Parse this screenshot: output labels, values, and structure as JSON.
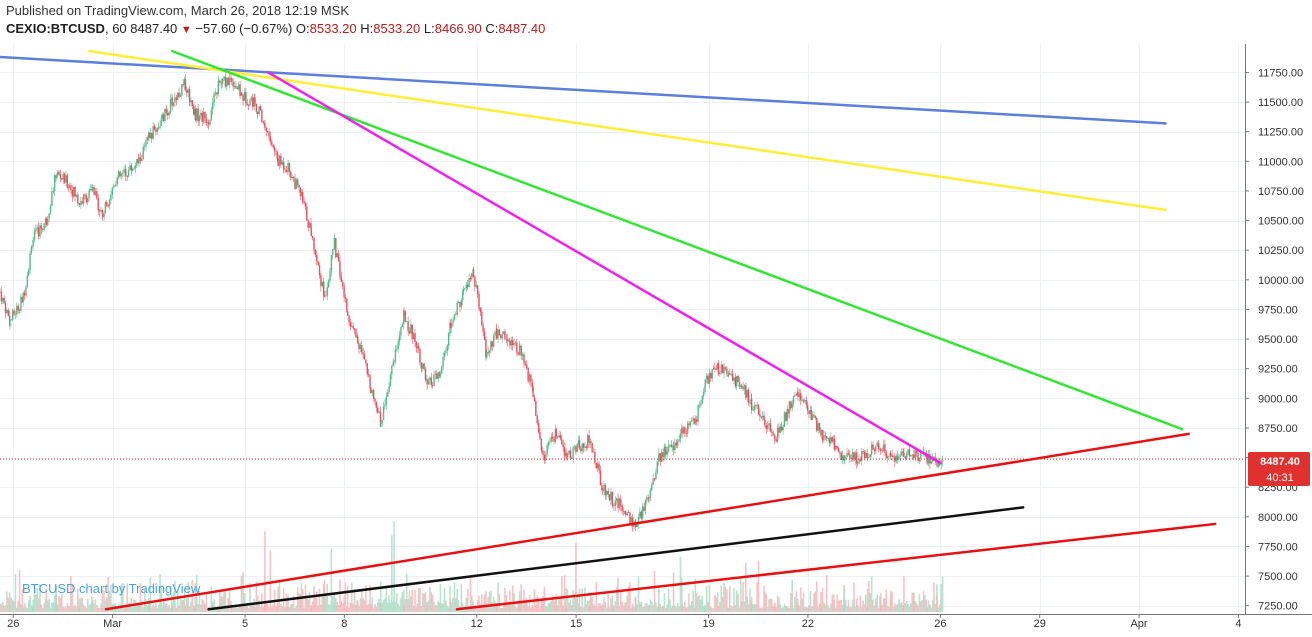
{
  "header": {
    "published": "Published on TradingView.com, March 26, 2018 12:19 MSK",
    "symbol": "CEXIO:BTCUSD",
    "interval": "60",
    "last": "8487.40",
    "change_arrow": "▼",
    "change": "−57.60 (−0.67%)",
    "o_label": "O:",
    "o_value": "8533.20",
    "h_label": "H:",
    "h_value": "8533.20",
    "l_label": "L:",
    "l_value": "8466.90",
    "c_label": "C:",
    "c_value": "8487.40"
  },
  "watermark": "BTCUSD chart by TradingView",
  "price_tag": {
    "value": "8487.40",
    "countdown": "40:31",
    "color": "#e0312f"
  },
  "chart_data": {
    "type": "line",
    "title": "",
    "xlabel": "",
    "ylabel": "",
    "ylim": [
      7180,
      11990
    ],
    "xlim": [
      25.6,
      63.2
    ],
    "x_ticks": [
      {
        "x": 26,
        "label": "26"
      },
      {
        "x": 29,
        "label": "Mar"
      },
      {
        "x": 33,
        "label": "5"
      },
      {
        "x": 36,
        "label": "8"
      },
      {
        "x": 40,
        "label": "12"
      },
      {
        "x": 43,
        "label": "15"
      },
      {
        "x": 47,
        "label": "19"
      },
      {
        "x": 50,
        "label": "22"
      },
      {
        "x": 54,
        "label": "26"
      },
      {
        "x": 57,
        "label": "29"
      },
      {
        "x": 60,
        "label": "Apr"
      },
      {
        "x": 63,
        "label": "4"
      }
    ],
    "y_ticks": [
      7250,
      7500,
      7750,
      8000,
      8250,
      8500,
      8750,
      9000,
      9250,
      9500,
      9750,
      10000,
      10250,
      10500,
      10750,
      11000,
      11250,
      11500,
      11750
    ],
    "current_price": 8487.4,
    "series": [
      {
        "x": [
          25.6,
          25.9,
          26.3,
          26.6,
          27.0,
          27.3,
          27.7,
          28.0,
          28.4,
          28.7,
          29.1,
          29.4,
          29.8,
          30.1,
          30.5,
          30.8,
          31.2,
          31.5,
          31.9,
          32.2,
          32.6,
          32.9,
          33.3,
          33.6,
          34.0,
          34.3,
          34.7,
          35.0,
          35.4,
          35.7,
          36.1,
          36.4,
          36.8,
          37.1,
          37.5,
          37.8,
          38.2,
          38.5,
          38.9,
          39.2,
          39.6,
          39.9,
          40.3,
          40.6,
          41.0,
          41.3,
          41.7,
          42.0,
          42.4,
          42.7,
          43.1,
          43.4,
          43.8,
          44.1,
          44.5,
          44.8,
          45.2,
          45.5,
          45.9,
          46.2,
          46.6,
          46.9,
          47.3,
          47.6,
          48.0,
          48.3,
          48.7,
          49.0,
          49.4,
          49.7,
          50.1,
          50.4,
          50.8,
          51.1,
          51.5,
          51.8,
          52.2,
          52.5,
          52.9,
          53.2,
          53.6,
          53.9,
          54.1
        ],
        "values": [
          9900,
          9650,
          9850,
          10350,
          10500,
          10900,
          10800,
          10650,
          10750,
          10550,
          10850,
          10900,
          11000,
          11200,
          11350,
          11500,
          11650,
          11400,
          11350,
          11650,
          11700,
          11550,
          11500,
          11300,
          11000,
          10950,
          10700,
          10400,
          9850,
          10300,
          9700,
          9500,
          9100,
          8800,
          9350,
          9700,
          9450,
          9100,
          9200,
          9600,
          9900,
          10050,
          9350,
          9550,
          9500,
          9400,
          9050,
          8500,
          8700,
          8500,
          8600,
          8650,
          8250,
          8150,
          8050,
          7900,
          8200,
          8500,
          8600,
          8700,
          8800,
          9150,
          9250,
          9200,
          9100,
          8950,
          8800,
          8650,
          8900,
          9050,
          8850,
          8700,
          8600,
          8500,
          8487.4,
          8550,
          8600,
          8500,
          8550,
          8510,
          8495,
          8480,
          8487.4
        ]
      }
    ],
    "trendlines": [
      {
        "color": "#5b7fdb",
        "x1": 25.6,
        "y1": 11880,
        "x2": 60.8,
        "y2": 11320
      },
      {
        "color": "#ffee33",
        "x1": 28.3,
        "y1": 11930,
        "x2": 60.8,
        "y2": 10590
      },
      {
        "color": "#33e633",
        "x1": 30.8,
        "y1": 11930,
        "x2": 61.3,
        "y2": 8740
      },
      {
        "color": "#ee22ee",
        "x1": 33.7,
        "y1": 11750,
        "x2": 54.0,
        "y2": 8455
      },
      {
        "color": "#e81010",
        "x1": 28.8,
        "y1": 7220,
        "x2": 61.5,
        "y2": 8700
      },
      {
        "color": "#e81010",
        "x1": 39.4,
        "y1": 7220,
        "x2": 62.3,
        "y2": 7940
      },
      {
        "color": "#111111",
        "x1": 31.9,
        "y1": 7220,
        "x2": 56.5,
        "y2": 8080
      }
    ]
  }
}
